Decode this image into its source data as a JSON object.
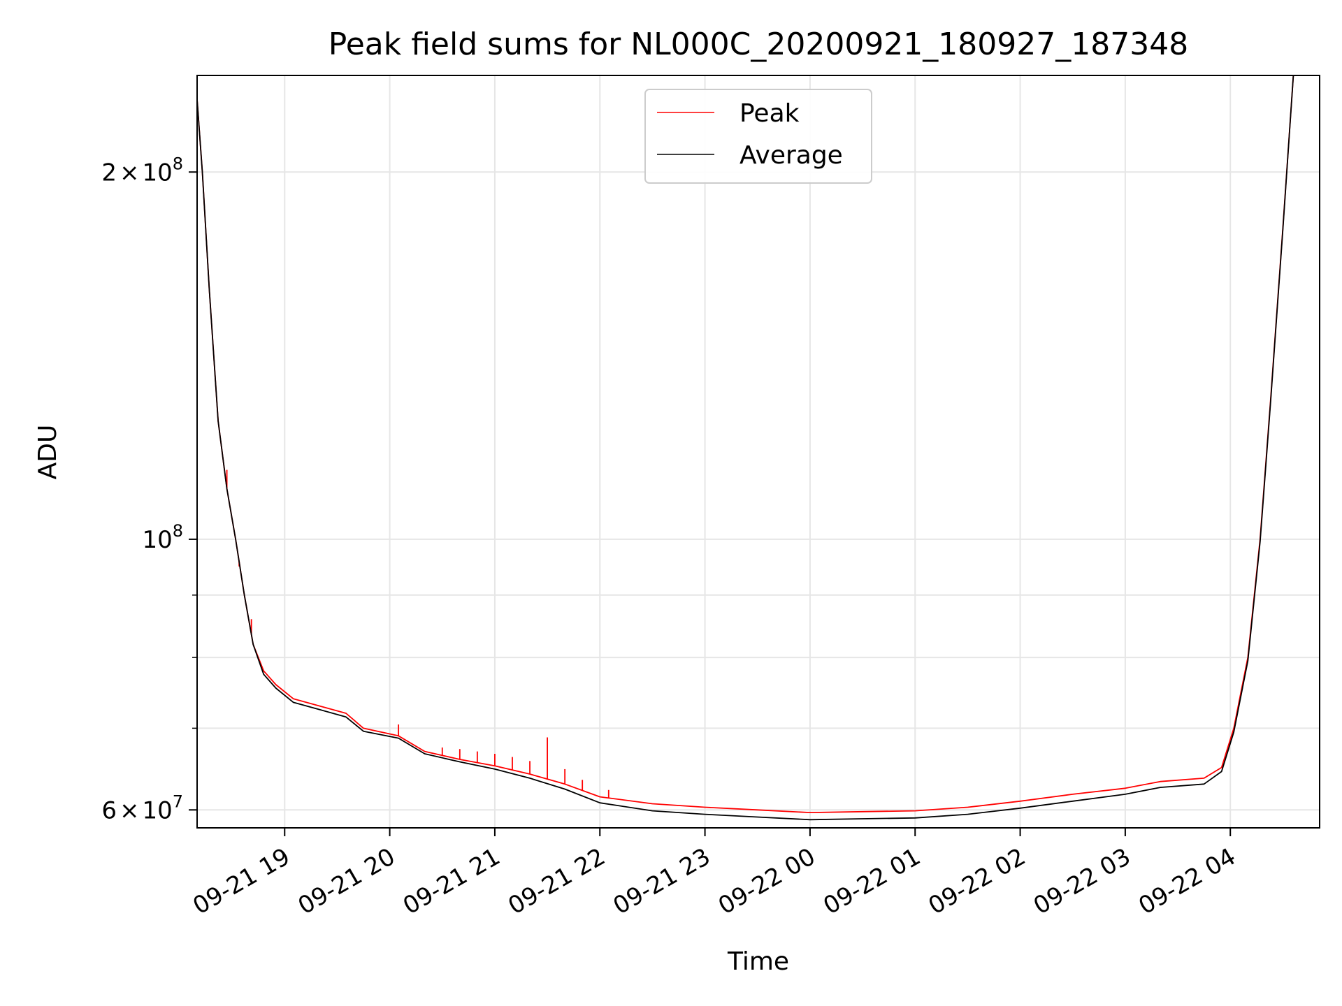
{
  "chart_data": {
    "type": "line",
    "title": "Peak field sums for NL000C_20200921_180927_187348",
    "xlabel": "Time",
    "ylabel": "ADU",
    "y_scale": "log",
    "ylim": [
      58000000,
      240000000
    ],
    "xlim": [
      "2020-09-21 18:10",
      "2020-09-22 04:51"
    ],
    "grid": true,
    "legend_position": "top-center",
    "x_ticks": [
      {
        "label": "09-21 19",
        "t": "2020-09-21 19:00"
      },
      {
        "label": "09-21 20",
        "t": "2020-09-21 20:00"
      },
      {
        "label": "09-21 21",
        "t": "2020-09-21 21:00"
      },
      {
        "label": "09-21 22",
        "t": "2020-09-21 22:00"
      },
      {
        "label": "09-21 23",
        "t": "2020-09-21 23:00"
      },
      {
        "label": "09-22 00",
        "t": "2020-09-22 00:00"
      },
      {
        "label": "09-22 01",
        "t": "2020-09-22 01:00"
      },
      {
        "label": "09-22 02",
        "t": "2020-09-22 02:00"
      },
      {
        "label": "09-22 03",
        "t": "2020-09-22 03:00"
      },
      {
        "label": "09-22 04",
        "t": "2020-09-22 04:00"
      }
    ],
    "y_ticks": [
      {
        "mantissa": "2",
        "exp": "8",
        "value": 200000000
      },
      {
        "mantissa": "",
        "exp": "8",
        "value": 100000000
      },
      {
        "mantissa": "6",
        "exp": "7",
        "value": 60000000
      }
    ],
    "y_minor_ticks": [
      70000000,
      80000000,
      90000000
    ],
    "series": [
      {
        "name": "Peak",
        "color": "#ff0000",
        "points": [
          [
            "2020-09-21 18:09",
            240000000
          ],
          [
            "2020-09-21 18:13",
            200000000
          ],
          [
            "2020-09-21 18:17",
            160000000
          ],
          [
            "2020-09-21 18:22",
            125000000
          ],
          [
            "2020-09-21 18:27",
            110000000
          ],
          [
            "2020-09-21 18:32",
            100000000
          ],
          [
            "2020-09-21 18:37",
            90000000
          ],
          [
            "2020-09-21 18:42",
            82000000
          ],
          [
            "2020-09-21 18:48",
            78000000
          ],
          [
            "2020-09-21 18:55",
            76000000
          ],
          [
            "2020-09-21 19:05",
            74000000
          ],
          [
            "2020-09-21 19:20",
            73000000
          ],
          [
            "2020-09-21 19:35",
            72000000
          ],
          [
            "2020-09-21 19:45",
            70000000
          ],
          [
            "2020-09-21 20:05",
            69000000
          ],
          [
            "2020-09-21 20:20",
            67000000
          ],
          [
            "2020-09-21 20:40",
            66000000
          ],
          [
            "2020-09-21 21:00",
            65200000
          ],
          [
            "2020-09-21 21:20",
            64200000
          ],
          [
            "2020-09-21 21:40",
            63000000
          ],
          [
            "2020-09-21 22:00",
            61500000
          ],
          [
            "2020-09-21 22:30",
            60700000
          ],
          [
            "2020-09-21 23:00",
            60300000
          ],
          [
            "2020-09-21 23:30",
            60000000
          ],
          [
            "2020-09-22 00:00",
            59700000
          ],
          [
            "2020-09-22 00:30",
            59800000
          ],
          [
            "2020-09-22 01:00",
            59900000
          ],
          [
            "2020-09-22 01:30",
            60300000
          ],
          [
            "2020-09-22 02:00",
            61000000
          ],
          [
            "2020-09-22 02:30",
            61800000
          ],
          [
            "2020-09-22 03:00",
            62500000
          ],
          [
            "2020-09-22 03:20",
            63300000
          ],
          [
            "2020-09-22 03:45",
            63700000
          ],
          [
            "2020-09-22 03:55",
            65000000
          ],
          [
            "2020-09-22 04:02",
            70000000
          ],
          [
            "2020-09-22 04:10",
            80000000
          ],
          [
            "2020-09-22 04:17",
            100000000
          ],
          [
            "2020-09-22 04:23",
            130000000
          ],
          [
            "2020-09-22 04:30",
            180000000
          ],
          [
            "2020-09-22 04:36",
            240000000
          ]
        ],
        "spikes": [
          [
            "2020-09-21 18:27",
            114000000
          ],
          [
            "2020-09-21 18:34",
            95000000
          ],
          [
            "2020-09-21 18:41",
            86000000
          ],
          [
            "2020-09-21 20:05",
            70500000
          ],
          [
            "2020-09-21 20:30",
            67500000
          ],
          [
            "2020-09-21 20:40",
            67300000
          ],
          [
            "2020-09-21 20:50",
            67000000
          ],
          [
            "2020-09-21 21:00",
            66700000
          ],
          [
            "2020-09-21 21:10",
            66300000
          ],
          [
            "2020-09-21 21:20",
            65800000
          ],
          [
            "2020-09-21 21:30",
            68800000
          ],
          [
            "2020-09-21 21:40",
            64800000
          ],
          [
            "2020-09-21 21:50",
            63500000
          ],
          [
            "2020-09-21 22:05",
            62300000
          ]
        ]
      },
      {
        "name": "Average",
        "color": "#000000",
        "points": [
          [
            "2020-09-21 18:09",
            240000000
          ],
          [
            "2020-09-21 18:13",
            200000000
          ],
          [
            "2020-09-21 18:17",
            160000000
          ],
          [
            "2020-09-21 18:22",
            125000000
          ],
          [
            "2020-09-21 18:27",
            110000000
          ],
          [
            "2020-09-21 18:32",
            100000000
          ],
          [
            "2020-09-21 18:37",
            90000000
          ],
          [
            "2020-09-21 18:42",
            82000000
          ],
          [
            "2020-09-21 18:48",
            77500000
          ],
          [
            "2020-09-21 18:55",
            75500000
          ],
          [
            "2020-09-21 19:05",
            73500000
          ],
          [
            "2020-09-21 19:20",
            72500000
          ],
          [
            "2020-09-21 19:35",
            71500000
          ],
          [
            "2020-09-21 19:45",
            69600000
          ],
          [
            "2020-09-21 20:05",
            68700000
          ],
          [
            "2020-09-21 20:20",
            66700000
          ],
          [
            "2020-09-21 20:40",
            65700000
          ],
          [
            "2020-09-21 21:00",
            64800000
          ],
          [
            "2020-09-21 21:20",
            63700000
          ],
          [
            "2020-09-21 21:40",
            62400000
          ],
          [
            "2020-09-21 22:00",
            60800000
          ],
          [
            "2020-09-21 22:30",
            59900000
          ],
          [
            "2020-09-21 23:00",
            59500000
          ],
          [
            "2020-09-21 23:30",
            59200000
          ],
          [
            "2020-09-22 00:00",
            58900000
          ],
          [
            "2020-09-22 00:30",
            59000000
          ],
          [
            "2020-09-22 01:00",
            59100000
          ],
          [
            "2020-09-22 01:30",
            59500000
          ],
          [
            "2020-09-22 02:00",
            60200000
          ],
          [
            "2020-09-22 02:30",
            61000000
          ],
          [
            "2020-09-22 03:00",
            61800000
          ],
          [
            "2020-09-22 03:20",
            62600000
          ],
          [
            "2020-09-22 03:45",
            63000000
          ],
          [
            "2020-09-22 03:55",
            64500000
          ],
          [
            "2020-09-22 04:02",
            69500000
          ],
          [
            "2020-09-22 04:10",
            79500000
          ],
          [
            "2020-09-22 04:17",
            99500000
          ],
          [
            "2020-09-22 04:23",
            129500000
          ],
          [
            "2020-09-22 04:30",
            179500000
          ],
          [
            "2020-09-22 04:36",
            240000000
          ]
        ]
      }
    ]
  }
}
